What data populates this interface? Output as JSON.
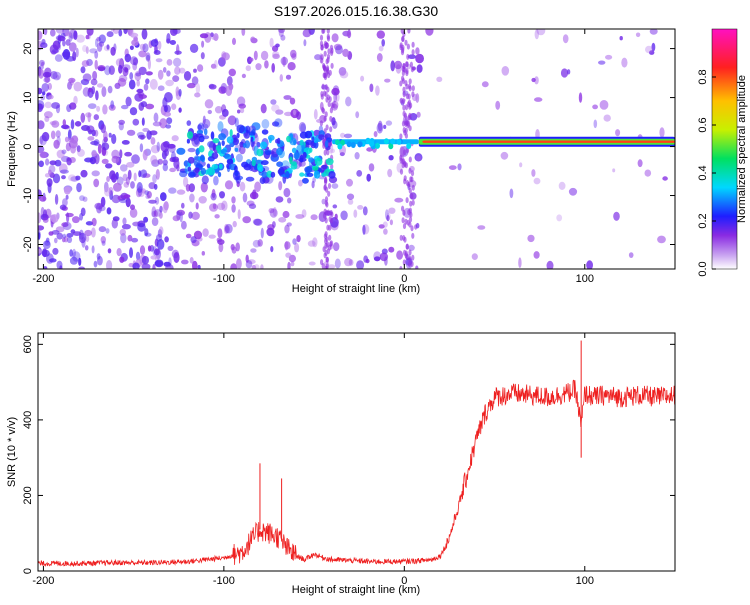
{
  "title": "S197.2026.015.16.38.G30",
  "chart_data": [
    {
      "type": "heatmap",
      "xlabel": "Height of straight line (km)",
      "ylabel": "Frequency (Hz)",
      "xlim": [
        -203,
        150
      ],
      "ylim": [
        -25,
        24
      ],
      "x_ticks": [
        -200,
        -100,
        0,
        100
      ],
      "y_ticks": [
        -20,
        -10,
        0,
        10,
        20
      ],
      "colorbar": {
        "label": "Normalized spectral amplitude",
        "range": [
          0,
          1
        ],
        "ticks": [
          0.0,
          0.2,
          0.4,
          0.6,
          0.8
        ],
        "tick_labels": [
          "0.0",
          "0.2",
          "0.4",
          "0.6",
          "0.8"
        ],
        "colormap": [
          "#ffffff",
          "#8a2be2",
          "#1e1eff",
          "#00d8ff",
          "#00e060",
          "#c8f000",
          "#ffc000",
          "#ff2020",
          "#ff10c0"
        ]
      },
      "regions": [
        {
          "x_range": [
            -203,
            -125
          ],
          "freq_range": [
            -25,
            24
          ],
          "description_level": 0.1
        },
        {
          "x_range": [
            -125,
            -55
          ],
          "freq_range": [
            -6,
            4
          ],
          "description_level": 0.25
        },
        {
          "x_range": [
            -55,
            -40
          ],
          "freq_range": [
            -4,
            3
          ],
          "description_level": 0.3
        },
        {
          "x_range": [
            -40,
            8
          ],
          "freq_range": [
            -1,
            2
          ],
          "description_level": 0.4
        },
        {
          "x_range": [
            8,
            150
          ],
          "freq_range": [
            0,
            2
          ],
          "description_level": 0.9
        }
      ]
    },
    {
      "type": "line",
      "xlabel": "Height of straight line (km)",
      "ylabel": "SNR (10 * v/v)",
      "xlim": [
        -203,
        150
      ],
      "ylim": [
        0,
        630
      ],
      "x_ticks": [
        -200,
        -100,
        0,
        100
      ],
      "y_ticks": [
        0,
        200,
        400,
        600
      ],
      "color": "#ee2020",
      "series": [
        {
          "x": [
            -203,
            -180,
            -160,
            -140,
            -120,
            -110,
            -100,
            -90,
            -85,
            -80,
            -75,
            -70,
            -65,
            -60,
            -55,
            -50,
            -45,
            -40,
            -30,
            -20,
            -10,
            0,
            10,
            15,
            20,
            25,
            30,
            35,
            40,
            45,
            50,
            60,
            70,
            80,
            90,
            95,
            98,
            100,
            105,
            110,
            120,
            130,
            140,
            150
          ],
          "y": [
            20,
            20,
            22,
            22,
            25,
            30,
            35,
            50,
            80,
            110,
            100,
            90,
            60,
            40,
            30,
            45,
            35,
            30,
            28,
            25,
            25,
            25,
            28,
            30,
            40,
            90,
            170,
            260,
            350,
            420,
            460,
            470,
            465,
            460,
            470,
            480,
            380,
            470,
            460,
            465,
            460,
            465,
            460,
            465
          ]
        }
      ],
      "spikes": [
        {
          "x": -80,
          "y": 285
        },
        {
          "x": -68,
          "y": 245
        },
        {
          "x": 98,
          "y": 610
        },
        {
          "x": 98,
          "y": 300
        }
      ]
    }
  ]
}
